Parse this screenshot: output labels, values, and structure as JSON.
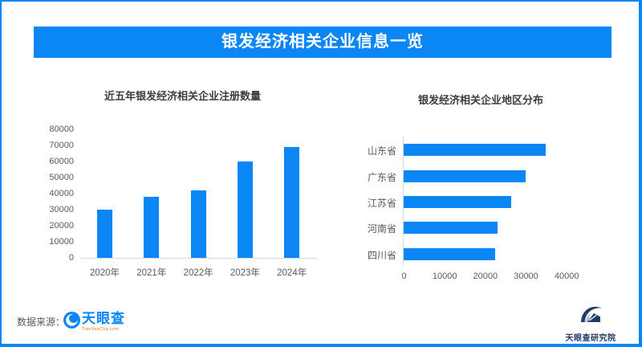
{
  "header": {
    "title": "银发经济相关企业信息一览"
  },
  "colors": {
    "primary_blue": "#0a86f5",
    "axis_line": "#d9d9d9",
    "axis_text": "#595959",
    "title_text": "#3d3d3d",
    "logo_orange": "#f07022",
    "institute_navy": "#1d3c66"
  },
  "chart_data": [
    {
      "type": "bar",
      "orientation": "vertical",
      "title": "近五年银发经济相关企业注册数量",
      "categories": [
        "2020年",
        "2021年",
        "2022年",
        "2023年",
        "2024年"
      ],
      "values": [
        30000,
        38000,
        42000,
        60000,
        69000
      ],
      "xlabel": "",
      "ylabel": "",
      "ylim": [
        0,
        80000
      ],
      "yticks": [
        0,
        10000,
        20000,
        30000,
        40000,
        50000,
        60000,
        70000,
        80000
      ],
      "grid": false,
      "legend": false,
      "bar_color": "#0a86f5"
    },
    {
      "type": "bar",
      "orientation": "horizontal",
      "title": "银发经济相关企业地区分布",
      "categories": [
        "山东省",
        "广东省",
        "江苏省",
        "河南省",
        "四川省"
      ],
      "values": [
        35000,
        30000,
        26500,
        23000,
        22500
      ],
      "xlabel": "",
      "ylabel": "",
      "xlim": [
        0,
        45000
      ],
      "xticks": [
        0,
        10000,
        20000,
        30000,
        40000
      ],
      "grid": false,
      "legend": false,
      "bar_color": "#0a86f5"
    }
  ],
  "footer": {
    "source_label": "数据来源：",
    "logo": {
      "name": "天眼查",
      "domain": "TianYanCha.com",
      "icon": "tianyancha-eye-icon"
    },
    "institute": {
      "name": "天眼查研究院",
      "icon": "tianyancha-institute-icon"
    }
  }
}
